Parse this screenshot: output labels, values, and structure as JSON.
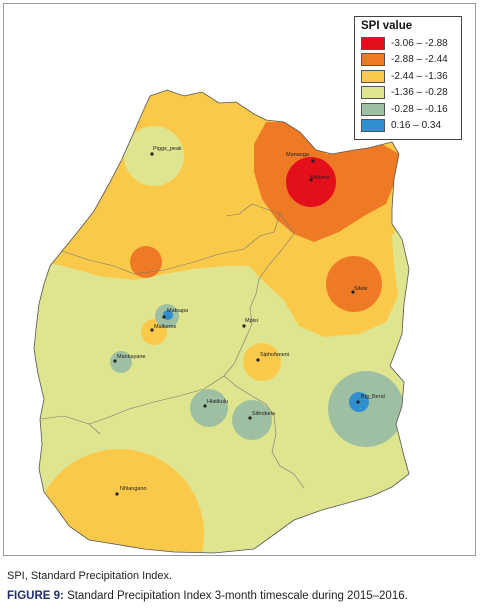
{
  "legend": {
    "title": "SPI value",
    "items": [
      {
        "label": "-3.06 – -2.88",
        "color": "#e3101b"
      },
      {
        "label": "-2.88 – -2.44",
        "color": "#ef7a26"
      },
      {
        "label": "-2.44 – -1.36",
        "color": "#fbc94a"
      },
      {
        "label": "-1.36 – -0.28",
        "color": "#dfe48e"
      },
      {
        "label": "-0.28 – -0.16",
        "color": "#9fbfa2"
      },
      {
        "label": "0.16 – 0.34",
        "color": "#2f8fcf"
      }
    ]
  },
  "places": [
    {
      "name": "Piggs_peak"
    },
    {
      "name": "Mananga"
    },
    {
      "name": "Mhlume"
    },
    {
      "name": "Siteki"
    },
    {
      "name": "Matsapa"
    },
    {
      "name": "Malkerns"
    },
    {
      "name": "Mpisi"
    },
    {
      "name": "Mankayane"
    },
    {
      "name": "Siphofaneni"
    },
    {
      "name": "Big_Bend"
    },
    {
      "name": "Hlatikulu"
    },
    {
      "name": "Sithobela"
    },
    {
      "name": "Nhlangano"
    }
  ],
  "footnote": "SPI, Standard Precipitation Index.",
  "caption": {
    "label": "FIGURE 9:",
    "text": " Standard Precipitation Index 3-month timescale during 2015–2016."
  }
}
